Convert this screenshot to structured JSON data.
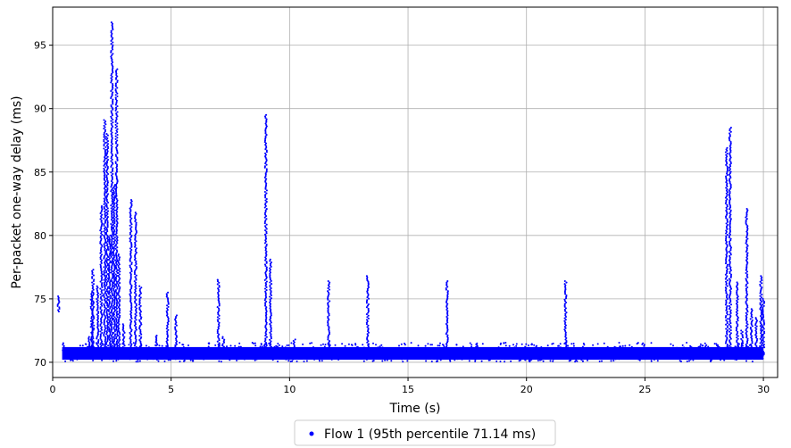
{
  "chart_data": {
    "type": "scatter",
    "title": "",
    "xlabel": "Time (s)",
    "ylabel": "Per-packet one-way delay (ms)",
    "xlim": [
      0,
      30.6
    ],
    "ylim": [
      68.8,
      98
    ],
    "xticks": [
      0,
      5,
      10,
      15,
      20,
      25,
      30
    ],
    "yticks": [
      70,
      75,
      80,
      85,
      90,
      95
    ],
    "grid": true,
    "legend_position": "bottom-center",
    "color": "#0000ff",
    "series": [
      {
        "name": "Flow 1 (95th percentile 71.14 ms)",
        "baseline": {
          "x_start": 0.4,
          "x_end": 30.0,
          "y_min": 70.2,
          "y_max": 71.2
        },
        "spikes": [
          {
            "x": 0.25,
            "y_min": 74.0,
            "y_max": 75.2
          },
          {
            "x": 0.45,
            "y_min": 70.5,
            "y_max": 71.5
          },
          {
            "x": 1.55,
            "y_min": 70.3,
            "y_max": 72.0
          },
          {
            "x": 1.65,
            "y_min": 70.3,
            "y_max": 75.5
          },
          {
            "x": 1.7,
            "y_min": 70.3,
            "y_max": 77.3
          },
          {
            "x": 1.9,
            "y_min": 70.3,
            "y_max": 76.0
          },
          {
            "x": 2.05,
            "y_min": 70.3,
            "y_max": 82.3
          },
          {
            "x": 2.2,
            "y_min": 70.3,
            "y_max": 89.1
          },
          {
            "x": 2.3,
            "y_min": 70.3,
            "y_max": 88.0
          },
          {
            "x": 2.4,
            "y_min": 70.3,
            "y_max": 80.0
          },
          {
            "x": 2.5,
            "y_min": 70.3,
            "y_max": 96.8
          },
          {
            "x": 2.6,
            "y_min": 70.3,
            "y_max": 84.0
          },
          {
            "x": 2.7,
            "y_min": 70.3,
            "y_max": 93.1
          },
          {
            "x": 2.8,
            "y_min": 70.3,
            "y_max": 78.5
          },
          {
            "x": 3.0,
            "y_min": 70.3,
            "y_max": 73.0
          },
          {
            "x": 3.3,
            "y_min": 70.3,
            "y_max": 82.8
          },
          {
            "x": 3.5,
            "y_min": 70.3,
            "y_max": 81.8
          },
          {
            "x": 3.7,
            "y_min": 70.3,
            "y_max": 76.0
          },
          {
            "x": 4.35,
            "y_min": 71.5,
            "y_max": 72.1
          },
          {
            "x": 4.85,
            "y_min": 70.5,
            "y_max": 75.5
          },
          {
            "x": 5.2,
            "y_min": 70.5,
            "y_max": 73.7
          },
          {
            "x": 7.0,
            "y_min": 70.5,
            "y_max": 76.5
          },
          {
            "x": 7.2,
            "y_min": 71.0,
            "y_max": 72.0
          },
          {
            "x": 9.0,
            "y_min": 70.3,
            "y_max": 89.5
          },
          {
            "x": 9.2,
            "y_min": 70.3,
            "y_max": 78.1
          },
          {
            "x": 10.2,
            "y_min": 71.0,
            "y_max": 71.8
          },
          {
            "x": 11.65,
            "y_min": 71.0,
            "y_max": 76.4
          },
          {
            "x": 13.3,
            "y_min": 71.0,
            "y_max": 76.8
          },
          {
            "x": 16.65,
            "y_min": 71.0,
            "y_max": 76.4
          },
          {
            "x": 21.65,
            "y_min": 71.0,
            "y_max": 76.4
          },
          {
            "x": 28.45,
            "y_min": 70.5,
            "y_max": 86.9
          },
          {
            "x": 28.6,
            "y_min": 70.5,
            "y_max": 88.5
          },
          {
            "x": 28.9,
            "y_min": 70.5,
            "y_max": 76.3
          },
          {
            "x": 29.1,
            "y_min": 70.5,
            "y_max": 72.5
          },
          {
            "x": 29.3,
            "y_min": 70.5,
            "y_max": 82.1
          },
          {
            "x": 29.5,
            "y_min": 70.5,
            "y_max": 74.2
          },
          {
            "x": 29.7,
            "y_min": 70.5,
            "y_max": 73.5
          },
          {
            "x": 29.9,
            "y_min": 70.5,
            "y_max": 76.8
          },
          {
            "x": 30.0,
            "y_min": 70.5,
            "y_max": 75.0
          }
        ]
      }
    ]
  }
}
